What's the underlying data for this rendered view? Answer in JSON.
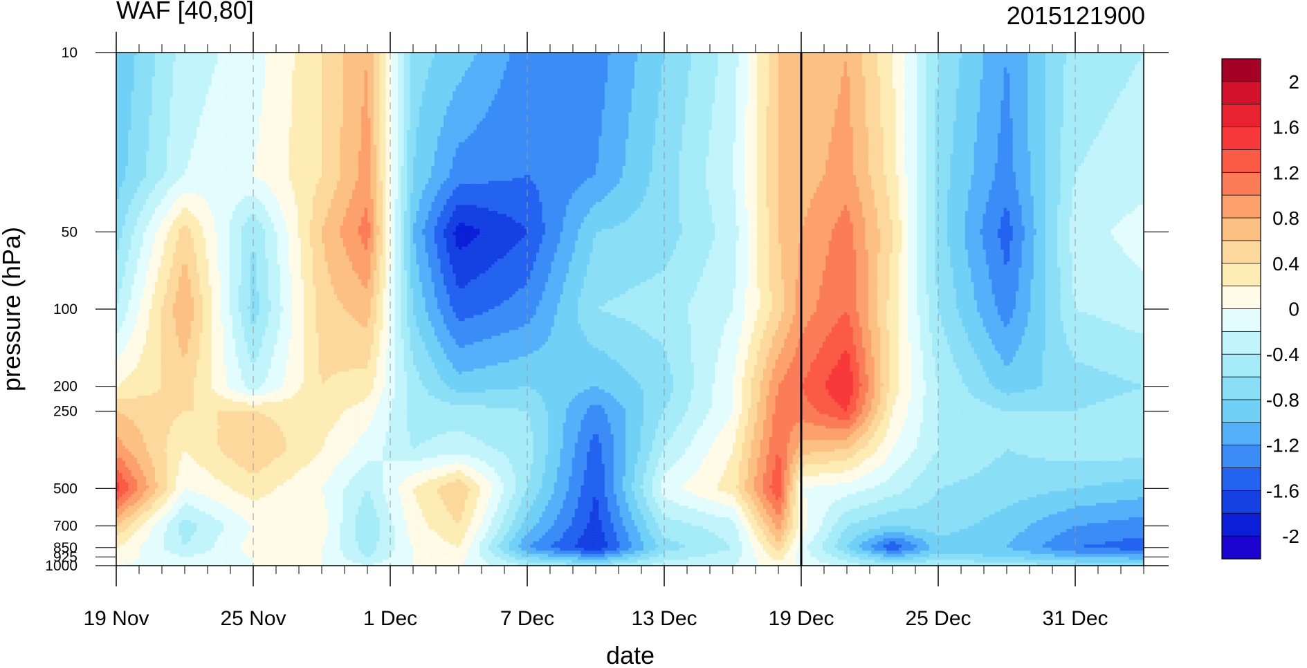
{
  "chart_data": {
    "type": "heatmap",
    "title": "WAF [40,80]",
    "subtitle": "2015121900",
    "xlabel": "date",
    "ylabel": "pressure (hPa)",
    "x_tick_labels": [
      "19 Nov",
      "25 Nov",
      "1 Dec",
      "7 Dec",
      "13 Dec",
      "19 Dec",
      "25 Dec",
      "31 Dec"
    ],
    "x_tick_dates": [
      "2015-11-19",
      "2015-11-25",
      "2015-12-01",
      "2015-12-07",
      "2015-12-13",
      "2015-12-19",
      "2015-12-25",
      "2015-12-31"
    ],
    "x_range": [
      "2015-11-19",
      "2016-01-03"
    ],
    "y_tick_labels": [
      "10",
      "50",
      "100",
      "200",
      "250",
      "500",
      "700",
      "850",
      "925",
      "1000"
    ],
    "y_ticks": [
      10,
      50,
      100,
      200,
      250,
      500,
      700,
      850,
      925,
      1000
    ],
    "y_range": [
      1000,
      10
    ],
    "y_scale": "log",
    "y_inverted": true,
    "reference_line_date": "2015-12-19",
    "grid": "dashed vertical lines at x tick dates",
    "colorbar": {
      "labels": [
        "2",
        "1.6",
        "1.2",
        "0.8",
        "0.4",
        "0",
        "-0.4",
        "-0.8",
        "-1.2",
        "-1.6",
        "-2"
      ],
      "label_values": [
        2,
        1.6,
        1.2,
        0.8,
        0.4,
        0,
        -0.4,
        -0.8,
        -1.2,
        -1.6,
        -2
      ],
      "levels": [
        2.2,
        2.0,
        1.8,
        1.6,
        1.4,
        1.2,
        1.0,
        0.8,
        0.6,
        0.4,
        0.2,
        0.0,
        -0.2,
        -0.4,
        -0.6,
        -0.8,
        -1.0,
        -1.2,
        -1.4,
        -1.6,
        -1.8,
        -2.0,
        -2.2
      ],
      "colors": [
        "#a50026",
        "#d3112b",
        "#e8232f",
        "#f7393b",
        "#fb5a45",
        "#fb7d58",
        "#fca06c",
        "#fcc082",
        "#fdd89c",
        "#feecb5",
        "#fffbe6",
        "#e3fcfd",
        "#c2f5fb",
        "#a6ebf8",
        "#8adff7",
        "#70d0f6",
        "#55b0fa",
        "#3b8cf7",
        "#2463f0",
        "#1540e2",
        "#0b1ed8",
        "#1b04cf"
      ]
    },
    "field_columns": {
      "dates": [
        "2015-11-19",
        "2015-11-22",
        "2015-11-25",
        "2015-11-28",
        "2015-11-30",
        "2015-12-02",
        "2015-12-04",
        "2015-12-07",
        "2015-12-10",
        "2015-12-13",
        "2015-12-16",
        "2015-12-18",
        "2015-12-19",
        "2015-12-21",
        "2015-12-23",
        "2015-12-25",
        "2015-12-28",
        "2015-12-31",
        "2016-01-03"
      ]
    },
    "field_rows": {
      "pressure": [
        10,
        30,
        50,
        100,
        200,
        250,
        350,
        500,
        700,
        850,
        925,
        1000
      ]
    },
    "values": [
      [
        -1.0,
        -0.3,
        -0.1,
        0.4,
        0.8,
        -0.7,
        -0.9,
        -1.3,
        -1.3,
        -0.8,
        -0.3,
        0.6,
        0.6,
        0.8,
        0.2,
        -0.6,
        -1.2,
        -0.5,
        -0.4
      ],
      [
        -0.9,
        -0.2,
        0.0,
        0.4,
        0.9,
        -0.8,
        -1.3,
        -1.4,
        -1.2,
        -0.7,
        -0.2,
        0.6,
        0.7,
        0.9,
        0.3,
        -0.7,
        -1.3,
        -0.4,
        -0.3
      ],
      [
        -0.7,
        0.5,
        -0.6,
        0.6,
        1.1,
        -1.0,
        -1.9,
        -1.6,
        -0.8,
        -0.7,
        -0.3,
        0.6,
        0.8,
        1.1,
        0.4,
        -0.7,
        -1.5,
        -0.3,
        -0.1
      ],
      [
        -0.4,
        0.8,
        -0.7,
        0.5,
        0.7,
        -0.8,
        -1.5,
        -1.3,
        -0.6,
        -0.5,
        -0.2,
        0.5,
        0.9,
        1.2,
        0.3,
        -0.6,
        -1.3,
        -0.4,
        -0.3
      ],
      [
        0.2,
        0.5,
        -0.3,
        0.4,
        0.3,
        -0.5,
        -0.9,
        -0.8,
        -1.0,
        -0.7,
        0.0,
        1.0,
        1.2,
        1.6,
        0.3,
        -0.4,
        -0.9,
        -0.7,
        -0.6
      ],
      [
        0.6,
        0.4,
        0.4,
        0.3,
        0.1,
        -0.5,
        -0.5,
        -0.6,
        -1.3,
        -0.6,
        0.0,
        1.1,
        1.1,
        1.4,
        0.2,
        -0.4,
        -0.6,
        -0.6,
        -0.5
      ],
      [
        0.9,
        0.2,
        0.6,
        0.2,
        -0.1,
        -0.4,
        -0.3,
        -0.5,
        -1.5,
        -0.4,
        0.2,
        1.2,
        0.7,
        0.6,
        0.0,
        -0.4,
        -0.6,
        -0.5,
        -0.5
      ],
      [
        1.5,
        0.0,
        0.3,
        0.0,
        -0.4,
        0.2,
        0.6,
        -0.6,
        -1.6,
        -0.1,
        0.3,
        1.4,
        0.0,
        -0.1,
        -0.3,
        -0.6,
        -0.7,
        -0.8,
        -0.9
      ],
      [
        0.6,
        -0.5,
        0.0,
        0.1,
        -0.6,
        0.1,
        0.4,
        -0.9,
        -1.7,
        -0.5,
        -0.3,
        0.9,
        0.1,
        -0.6,
        -0.8,
        -0.7,
        -0.9,
        -1.2,
        -1.3
      ],
      [
        0.2,
        -0.4,
        0.1,
        0.0,
        -0.5,
        0.0,
        0.2,
        -1.2,
        -1.8,
        -0.7,
        -0.4,
        0.5,
        -0.1,
        -0.8,
        -1.6,
        -0.9,
        -1.0,
        -1.4,
        -1.5
      ],
      [
        0.1,
        -0.2,
        0.0,
        0.0,
        -0.4,
        0.0,
        0.1,
        -0.8,
        -1.2,
        -0.5,
        -0.3,
        0.3,
        -0.1,
        -0.5,
        -1.0,
        -0.7,
        -0.8,
        -1.0,
        -1.1
      ],
      [
        0.0,
        -0.1,
        0.0,
        0.0,
        -0.2,
        0.0,
        0.0,
        -0.4,
        -0.6,
        -0.3,
        -0.2,
        0.1,
        0.0,
        -0.3,
        -0.5,
        -0.4,
        -0.5,
        -0.6,
        -0.6
      ]
    ]
  }
}
